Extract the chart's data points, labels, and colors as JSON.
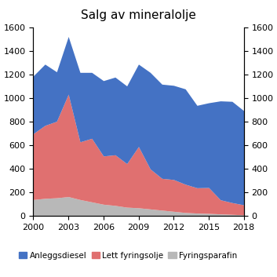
{
  "title": "Salg av mineralolje",
  "years": [
    2000,
    2001,
    2002,
    2003,
    2004,
    2005,
    2006,
    2007,
    2008,
    2009,
    2010,
    2011,
    2012,
    2013,
    2014,
    2015,
    2016,
    2017,
    2018
  ],
  "fyringsparafin": [
    140,
    150,
    155,
    165,
    140,
    120,
    100,
    90,
    75,
    70,
    60,
    50,
    40,
    30,
    25,
    22,
    18,
    14,
    10
  ],
  "lett_fyringsolje": [
    560,
    620,
    650,
    870,
    490,
    540,
    410,
    430,
    370,
    520,
    340,
    270,
    270,
    240,
    215,
    220,
    120,
    100,
    85
  ],
  "anleggsdiesel": [
    490,
    520,
    420,
    490,
    590,
    560,
    640,
    660,
    660,
    700,
    820,
    800,
    800,
    810,
    700,
    720,
    840,
    860,
    800
  ],
  "color_fyringsparafin": "#b8b8b8",
  "color_lett_fyringsolje": "#e07070",
  "color_anleggsdiesel": "#4472c4",
  "ylim": [
    0,
    1600
  ],
  "yticks": [
    0,
    200,
    400,
    600,
    800,
    1000,
    1200,
    1400,
    1600
  ],
  "xticks": [
    2000,
    2003,
    2006,
    2009,
    2012,
    2015,
    2018
  ],
  "legend_labels": [
    "Anleggsdiesel",
    "Lett fyringsolje",
    "Fyringsparafin"
  ]
}
